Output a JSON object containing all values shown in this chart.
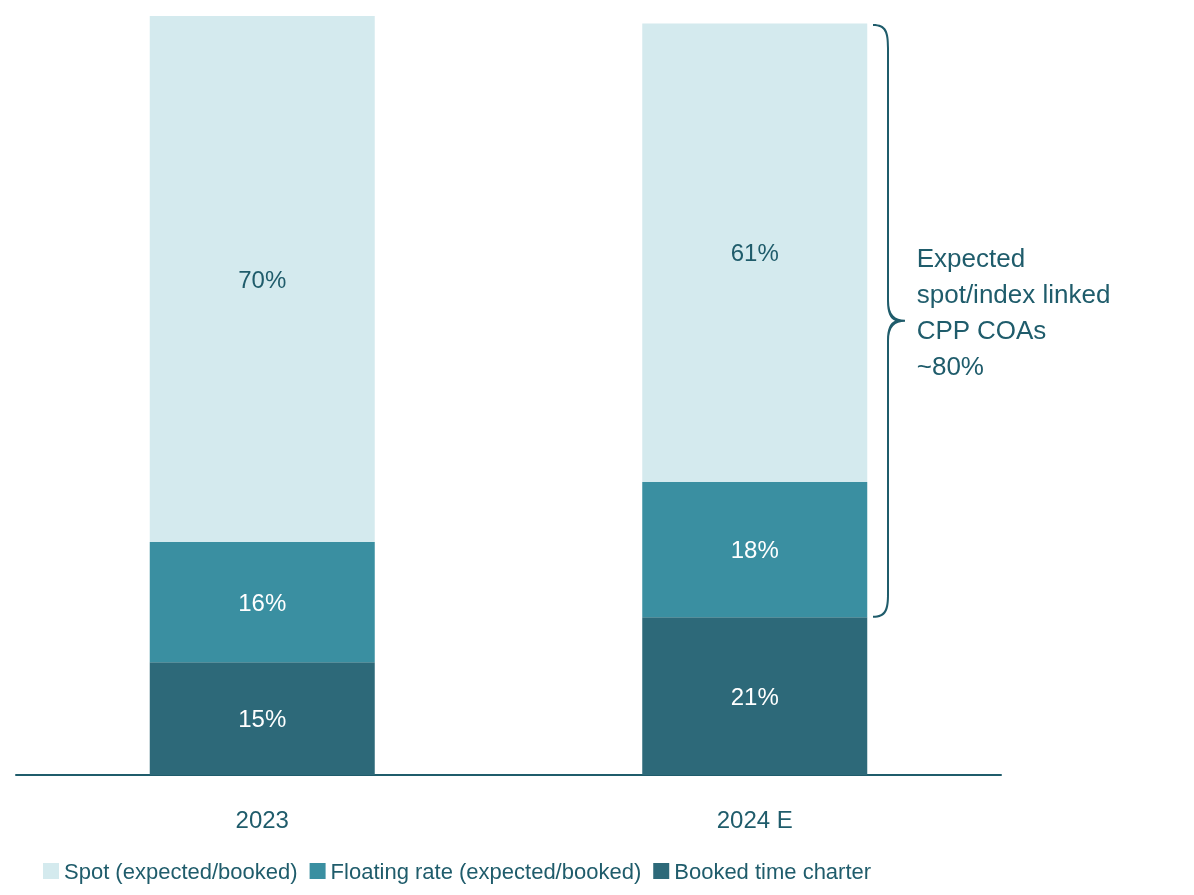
{
  "chart_data": {
    "type": "bar",
    "stacked": true,
    "categories": [
      "2023",
      "2024 E"
    ],
    "series": [
      {
        "name": "Booked time charter",
        "color": "#2d6979",
        "values": [
          15,
          21
        ],
        "value_labels": [
          "15%",
          "21%"
        ]
      },
      {
        "name": "Floating rate (expected/booked)",
        "color": "#3a8fa1",
        "values": [
          16,
          18
        ],
        "value_labels": [
          "16%",
          "18%"
        ]
      },
      {
        "name": "Spot (expected/booked)",
        "color": "#d4eaee",
        "values": [
          70,
          61
        ],
        "value_labels": [
          "70%",
          "61%"
        ]
      }
    ],
    "legend": "bottom left",
    "annotations": [
      "Expected\nspot/index linked\nCPP COAs\n~80%"
    ]
  }
}
